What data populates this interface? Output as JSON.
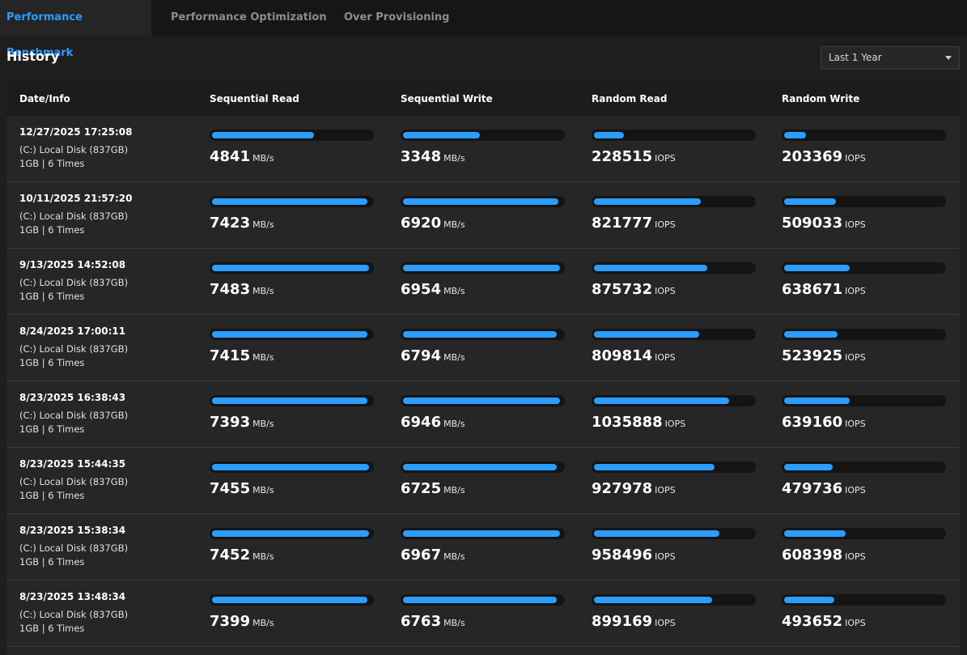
{
  "tabs": [
    {
      "label": "Performance Benchmark",
      "active": true
    },
    {
      "label": "Performance Optimization",
      "active": false
    },
    {
      "label": "Over Provisioning",
      "active": false
    }
  ],
  "history": {
    "title": "History",
    "range": "Last 1 Year"
  },
  "columns": [
    "Date/Info",
    "Sequential Read",
    "Sequential Write",
    "Random Read",
    "Random Write"
  ],
  "units": {
    "seq": "MB/s",
    "rnd": "IOPS"
  },
  "colors": {
    "accent": "#2b9dff",
    "background": "#1e1e1e",
    "track": "#141414"
  },
  "rows": [
    {
      "date": "12/27/2025 17:25:08",
      "disk": "(C:) Local Disk (837GB)",
      "runs": "1GB | 6 Times",
      "seq_read": "4841",
      "seq_write": "3348",
      "rnd_read": "228515",
      "rnd_write": "203369",
      "fill": [
        0.65,
        0.49,
        0.19,
        0.14
      ]
    },
    {
      "date": "10/11/2025 21:57:20",
      "disk": "(C:) Local Disk (837GB)",
      "runs": "1GB | 6 Times",
      "seq_read": "7423",
      "seq_write": "6920",
      "rnd_read": "821777",
      "rnd_write": "509033",
      "fill": [
        0.99,
        0.99,
        0.68,
        0.33
      ]
    },
    {
      "date": "9/13/2025 14:52:08",
      "disk": "(C:) Local Disk (837GB)",
      "runs": "1GB | 6 Times",
      "seq_read": "7483",
      "seq_write": "6954",
      "rnd_read": "875732",
      "rnd_write": "638671",
      "fill": [
        1.0,
        1.0,
        0.72,
        0.42
      ]
    },
    {
      "date": "8/24/2025 17:00:11",
      "disk": "(C:) Local Disk (837GB)",
      "runs": "1GB | 6 Times",
      "seq_read": "7415",
      "seq_write": "6794",
      "rnd_read": "809814",
      "rnd_write": "523925",
      "fill": [
        0.99,
        0.98,
        0.67,
        0.34
      ]
    },
    {
      "date": "8/23/2025 16:38:43",
      "disk": "(C:) Local Disk (837GB)",
      "runs": "1GB | 6 Times",
      "seq_read": "7393",
      "seq_write": "6946",
      "rnd_read": "1035888",
      "rnd_write": "639160",
      "fill": [
        0.99,
        1.0,
        0.86,
        0.42
      ]
    },
    {
      "date": "8/23/2025 15:44:35",
      "disk": "(C:) Local Disk (837GB)",
      "runs": "1GB | 6 Times",
      "seq_read": "7455",
      "seq_write": "6725",
      "rnd_read": "927978",
      "rnd_write": "479736",
      "fill": [
        1.0,
        0.98,
        0.77,
        0.31
      ]
    },
    {
      "date": "8/23/2025 15:38:34",
      "disk": "(C:) Local Disk (837GB)",
      "runs": "1GB | 6 Times",
      "seq_read": "7452",
      "seq_write": "6967",
      "rnd_read": "958496",
      "rnd_write": "608398",
      "fill": [
        1.0,
        1.0,
        0.8,
        0.39
      ]
    },
    {
      "date": "8/23/2025 13:48:34",
      "disk": "(C:) Local Disk (837GB)",
      "runs": "1GB | 6 Times",
      "seq_read": "7399",
      "seq_write": "6763",
      "rnd_read": "899169",
      "rnd_write": "493652",
      "fill": [
        0.99,
        0.98,
        0.75,
        0.32
      ]
    }
  ]
}
